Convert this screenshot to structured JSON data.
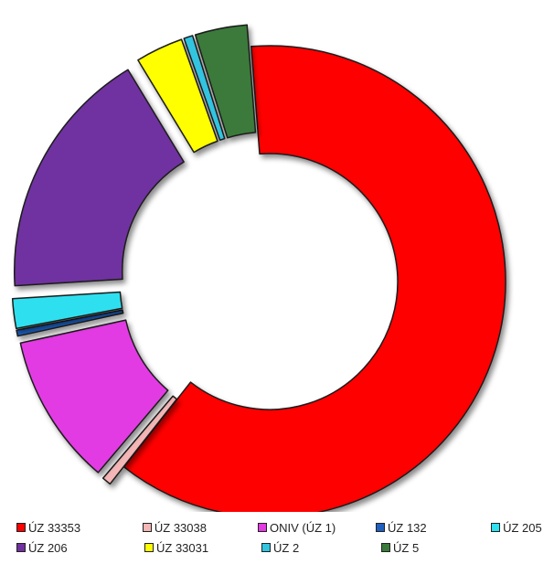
{
  "chart_data": {
    "type": "pie",
    "variant": "doughnut-exploded",
    "legend_position": "bottom",
    "categories": [
      "ÚZ 33353",
      "ÚZ 33038",
      "ONIV (ÚZ 1)",
      "ÚZ 132",
      "ÚZ 205",
      "ÚZ 206",
      "ÚZ 33031",
      "ÚZ 2",
      "ÚZ 5"
    ],
    "values": [
      60.8,
      0.6,
      10.2,
      0.4,
      2.0,
      17.0,
      3.2,
      0.6,
      3.5
    ],
    "colors": [
      "#ff0000",
      "#f4b6b6",
      "#e33be3",
      "#1f5fbf",
      "#2fe0ef",
      "#7030a0",
      "#ffff00",
      "#33c4e0",
      "#3a7a3a"
    ]
  }
}
